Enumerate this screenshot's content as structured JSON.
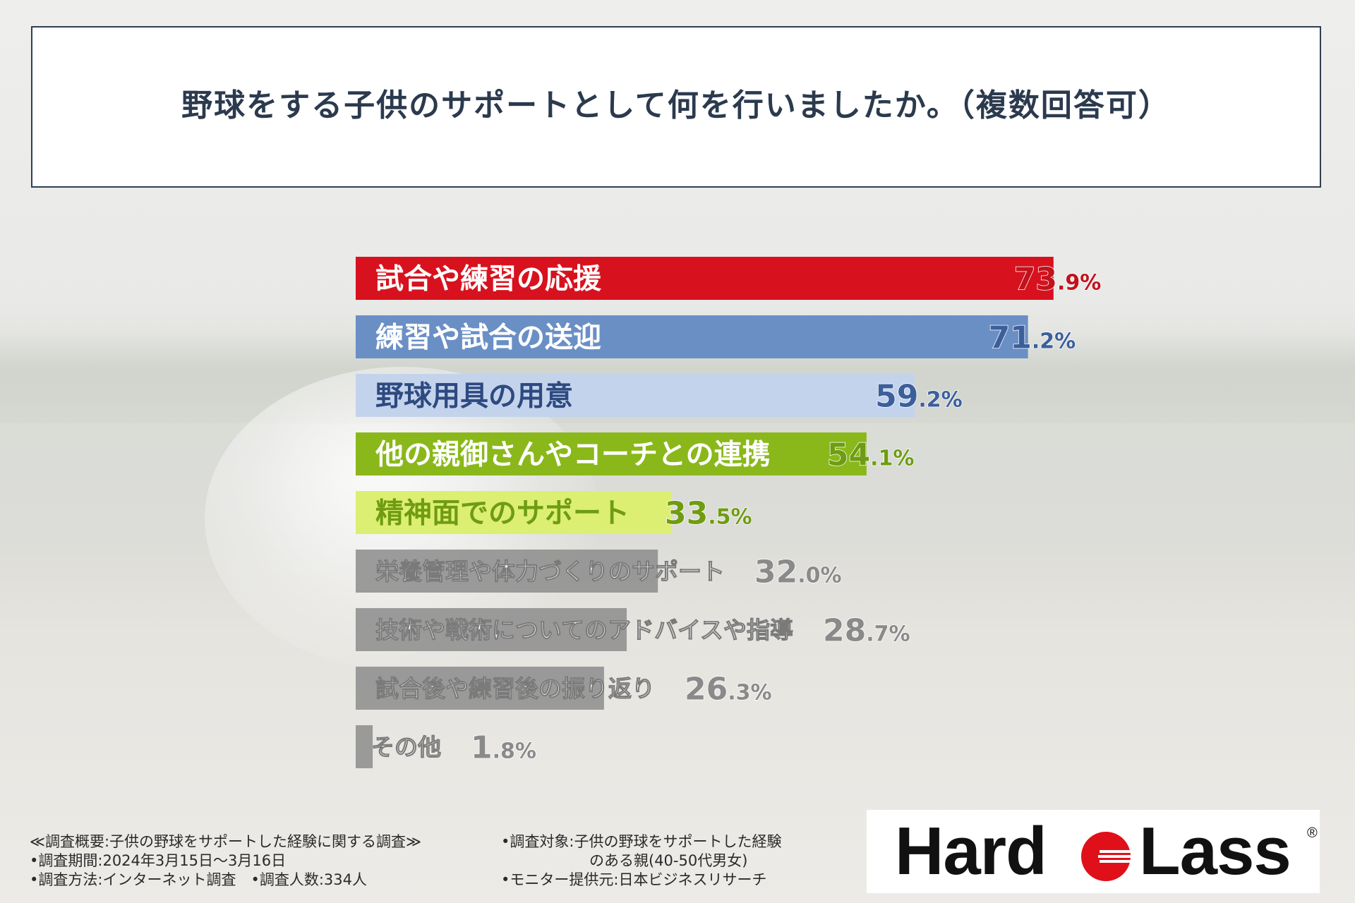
{
  "title": "野球をする子供のサポートとして何を行いましたか。（複数回答可）",
  "chart_data": {
    "type": "bar",
    "orientation": "horizontal",
    "value_suffix": "%",
    "categories": [
      "試合や練習の応援",
      "練習や試合の送迎",
      "野球用具の用意",
      "他の親御さんやコーチとの連携",
      "精神面でのサポート",
      "栄養管理や体力づくりのサポート",
      "技術や戦術についてのアドバイスや指導",
      "試合後や練習後の振り返り",
      "その他"
    ],
    "values": [
      73.9,
      71.2,
      59.2,
      54.1,
      33.5,
      32.0,
      28.7,
      26.3,
      1.8
    ],
    "bar_colors": [
      "#d7121e",
      "#6a8fc5",
      "#c4d3ec",
      "#8ab81a",
      "#dcef72",
      "#8c8c8c",
      "#8c8c8c",
      "#8c8c8c",
      "#8c8c8c"
    ],
    "value_colors": [
      "#c2121c",
      "#3c5f9c",
      "#3c5f9c",
      "#6f9c12",
      "#6f9c12",
      "#8a8a8a",
      "#8a8a8a",
      "#8a8a8a",
      "#8a8a8a"
    ],
    "label_colors": [
      "#ffffff",
      "#ffffff",
      "#2d4a80",
      "#ffffff",
      "#6f9c12",
      "#ffffff",
      "#ffffff",
      "#ffffff",
      "#ffffff"
    ]
  },
  "footer": {
    "overview": "≪調査概要:子供の野球をサポートした経験に関する調査≫",
    "period": "•調査期間:2024年3月15日～3月16日",
    "method": "•調査方法:インターネット調査　•調査人数:334人",
    "target_line1": "•調査対象:子供の野球をサポートした経験",
    "target_line2": "のある親(40-50代男女)",
    "provider": "•モニター提供元:日本ビジネスリサーチ"
  },
  "logo": {
    "left_text": "Hard",
    "right_text": "Lass",
    "registered_mark": "®",
    "mark_color": "#e0101a"
  }
}
